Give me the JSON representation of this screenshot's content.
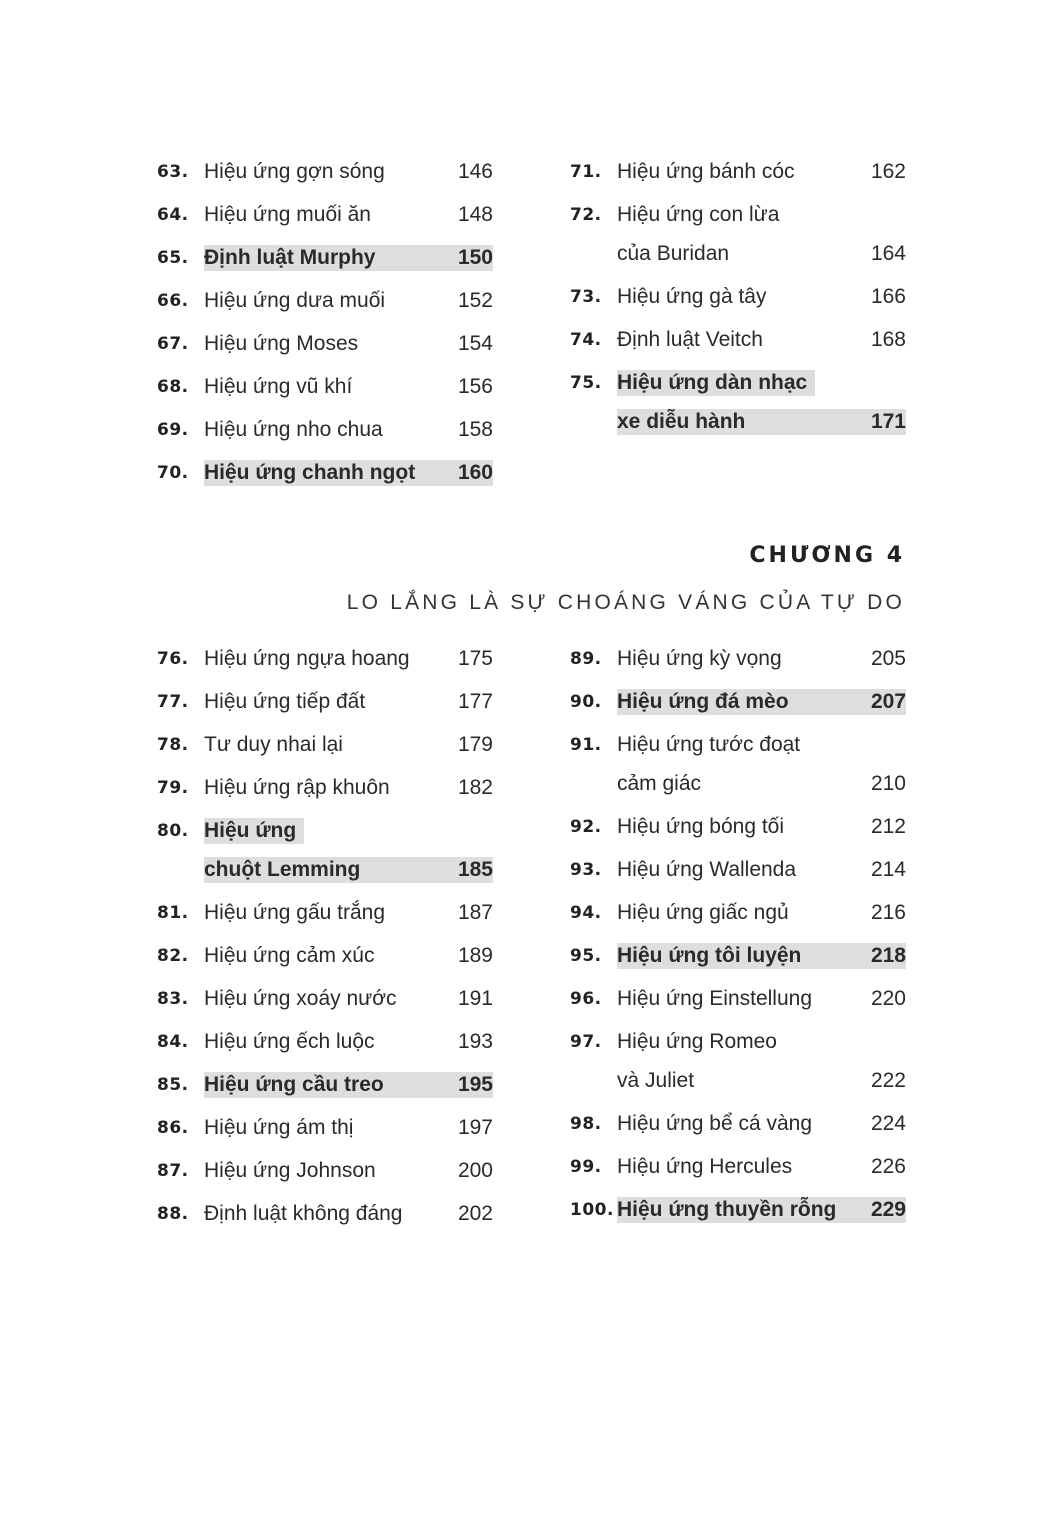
{
  "section1": {
    "left": [
      {
        "num": "63.",
        "lines": [
          "Hiệu ứng gợn sóng"
        ],
        "page": "146",
        "highlight": false
      },
      {
        "num": "64.",
        "lines": [
          "Hiệu ứng muối ăn"
        ],
        "page": "148",
        "highlight": false
      },
      {
        "num": "65.",
        "lines": [
          "Định luật Murphy"
        ],
        "page": "150",
        "highlight": true
      },
      {
        "num": "66.",
        "lines": [
          "Hiệu ứng dưa muối"
        ],
        "page": "152",
        "highlight": false
      },
      {
        "num": "67.",
        "lines": [
          "Hiệu ứng Moses"
        ],
        "page": "154",
        "highlight": false
      },
      {
        "num": "68.",
        "lines": [
          "Hiệu ứng vũ khí"
        ],
        "page": "156",
        "highlight": false
      },
      {
        "num": "69.",
        "lines": [
          "Hiệu ứng nho chua"
        ],
        "page": "158",
        "highlight": false
      },
      {
        "num": "70.",
        "lines": [
          "Hiệu ứng chanh ngọt"
        ],
        "page": "160",
        "highlight": true
      }
    ],
    "right": [
      {
        "num": "71.",
        "lines": [
          "Hiệu ứng bánh cóc"
        ],
        "page": "162",
        "highlight": false
      },
      {
        "num": "72.",
        "lines": [
          "Hiệu ứng con lừa",
          "của Buridan"
        ],
        "page": "164",
        "highlight": false
      },
      {
        "num": "73.",
        "lines": [
          "Hiệu ứng gà tây"
        ],
        "page": "166",
        "highlight": false
      },
      {
        "num": "74.",
        "lines": [
          "Định luật Veitch"
        ],
        "page": "168",
        "highlight": false
      },
      {
        "num": "75.",
        "lines": [
          "Hiệu ứng dàn nhạc",
          "xe diễu hành"
        ],
        "page": "171",
        "highlight": true
      }
    ]
  },
  "chapter": {
    "label": "CHƯƠNG 4",
    "title": "LO LẮNG LÀ SỰ CHOÁNG VÁNG CỦA TỰ DO"
  },
  "section2": {
    "left": [
      {
        "num": "76.",
        "lines": [
          "Hiệu ứng ngựa hoang"
        ],
        "page": "175",
        "highlight": false
      },
      {
        "num": "77.",
        "lines": [
          "Hiệu ứng tiếp đất"
        ],
        "page": "177",
        "highlight": false
      },
      {
        "num": "78.",
        "lines": [
          "Tư duy nhai lại"
        ],
        "page": "179",
        "highlight": false
      },
      {
        "num": "79.",
        "lines": [
          "Hiệu ứng rập khuôn"
        ],
        "page": "182",
        "highlight": false
      },
      {
        "num": "80.",
        "lines": [
          "Hiệu ứng",
          "chuột Lemming"
        ],
        "page": "185",
        "highlight": true
      },
      {
        "num": "81.",
        "lines": [
          "Hiệu ứng gấu trắng"
        ],
        "page": "187",
        "highlight": false
      },
      {
        "num": "82.",
        "lines": [
          "Hiệu ứng cảm xúc"
        ],
        "page": "189",
        "highlight": false
      },
      {
        "num": "83.",
        "lines": [
          "Hiệu ứng xoáy nước"
        ],
        "page": "191",
        "highlight": false
      },
      {
        "num": "84.",
        "lines": [
          "Hiệu ứng ếch luộc"
        ],
        "page": "193",
        "highlight": false
      },
      {
        "num": "85.",
        "lines": [
          "Hiệu ứng cầu treo"
        ],
        "page": "195",
        "highlight": true
      },
      {
        "num": "86.",
        "lines": [
          "Hiệu ứng ám thị"
        ],
        "page": "197",
        "highlight": false
      },
      {
        "num": "87.",
        "lines": [
          "Hiệu ứng Johnson"
        ],
        "page": "200",
        "highlight": false
      },
      {
        "num": "88.",
        "lines": [
          "Định luật không đáng"
        ],
        "page": "202",
        "highlight": false
      }
    ],
    "right": [
      {
        "num": "89.",
        "lines": [
          "Hiệu ứng kỳ vọng"
        ],
        "page": "205",
        "highlight": false
      },
      {
        "num": "90.",
        "lines": [
          "Hiệu ứng đá mèo"
        ],
        "page": "207",
        "highlight": true
      },
      {
        "num": "91.",
        "lines": [
          "Hiệu ứng tước đoạt",
          "cảm giác"
        ],
        "page": "210",
        "highlight": false
      },
      {
        "num": "92.",
        "lines": [
          "Hiệu ứng bóng tối"
        ],
        "page": "212",
        "highlight": false
      },
      {
        "num": "93.",
        "lines": [
          "Hiệu ứng Wallenda"
        ],
        "page": "214",
        "highlight": false
      },
      {
        "num": "94.",
        "lines": [
          "Hiệu ứng giấc ngủ"
        ],
        "page": "216",
        "highlight": false
      },
      {
        "num": "95.",
        "lines": [
          "Hiệu ứng tôi luyện"
        ],
        "page": "218",
        "highlight": true
      },
      {
        "num": "96.",
        "lines": [
          "Hiệu ứng Einstellung"
        ],
        "page": "220",
        "highlight": false
      },
      {
        "num": "97.",
        "lines": [
          "Hiệu ứng Romeo",
          "và Juliet"
        ],
        "page": "222",
        "highlight": false
      },
      {
        "num": "98.",
        "lines": [
          "Hiệu ứng bể cá vàng"
        ],
        "page": "224",
        "highlight": false
      },
      {
        "num": "99.",
        "lines": [
          "Hiệu ứng Hercules"
        ],
        "page": "226",
        "highlight": false
      },
      {
        "num": "100.",
        "lines": [
          "Hiệu ứng thuyền rỗng"
        ],
        "page": "229",
        "highlight": true
      }
    ]
  }
}
